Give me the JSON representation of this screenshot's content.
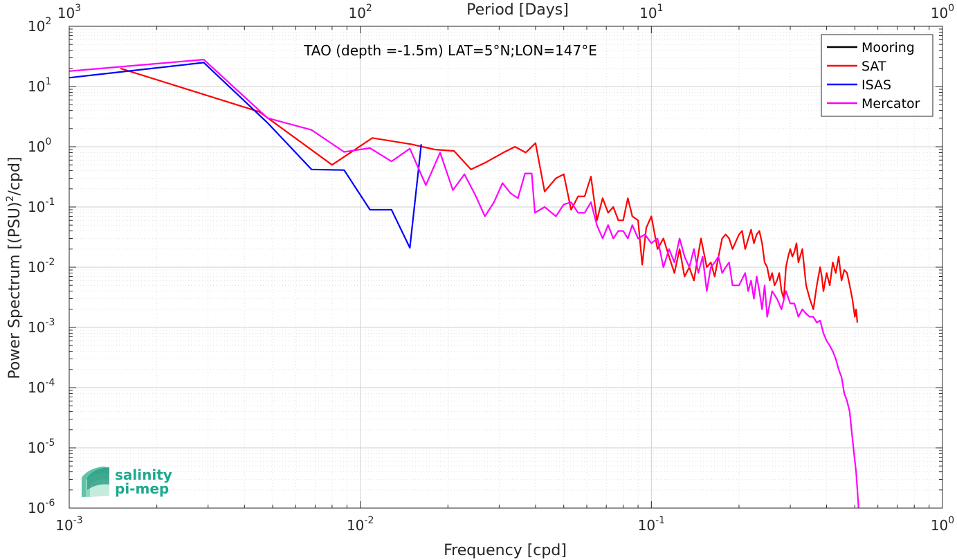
{
  "chart_data": {
    "type": "line",
    "title": "TAO (depth =-1.5m) LAT=5°N;LON=147°E",
    "xlabel": "Frequency [cpd]",
    "ylabel_main": "Power Spectrum [(PSU)",
    "ylabel_sup": "2",
    "ylabel_tail": "/cpd]",
    "top_xlabel": "Period [Days]",
    "x_scale": "log",
    "y_scale": "log",
    "xlim": [
      0.001,
      1
    ],
    "ylim": [
      1e-06,
      100
    ],
    "grid": true,
    "legend_position": "top-right",
    "x_ticks": [
      {
        "value": 0.001,
        "base": "10",
        "exp": "-3"
      },
      {
        "value": 0.01,
        "base": "10",
        "exp": "-2"
      },
      {
        "value": 0.1,
        "base": "10",
        "exp": "-1"
      },
      {
        "value": 1,
        "base": "10",
        "exp": "0"
      }
    ],
    "top_ticks": [
      {
        "value": 0.001,
        "base": "10",
        "exp": "3"
      },
      {
        "value": 0.01,
        "base": "10",
        "exp": "2"
      },
      {
        "value": 0.1,
        "base": "10",
        "exp": "1"
      },
      {
        "value": 1,
        "base": "10",
        "exp": "0"
      }
    ],
    "y_ticks": [
      {
        "value": 100,
        "base": "10",
        "exp": "2"
      },
      {
        "value": 10,
        "base": "10",
        "exp": "1"
      },
      {
        "value": 1,
        "base": "10",
        "exp": "0"
      },
      {
        "value": 0.1,
        "base": "10",
        "exp": "-1"
      },
      {
        "value": 0.01,
        "base": "10",
        "exp": "-2"
      },
      {
        "value": 0.001,
        "base": "10",
        "exp": "-3"
      },
      {
        "value": 0.0001,
        "base": "10",
        "exp": "-4"
      },
      {
        "value": 1e-05,
        "base": "10",
        "exp": "-5"
      },
      {
        "value": 1e-06,
        "base": "10",
        "exp": "-6"
      }
    ],
    "series": [
      {
        "name": "Mooring",
        "color": "#000000",
        "points": []
      },
      {
        "name": "SAT",
        "color": "#ff0000",
        "points": [
          [
            0.0015,
            20
          ],
          [
            0.0045,
            3.8
          ],
          [
            0.008,
            0.5
          ],
          [
            0.011,
            1.4
          ],
          [
            0.015,
            1.1
          ],
          [
            0.018,
            0.9
          ],
          [
            0.021,
            0.85
          ],
          [
            0.024,
            0.42
          ],
          [
            0.027,
            0.55
          ],
          [
            0.031,
            0.8
          ],
          [
            0.034,
            1.0
          ],
          [
            0.037,
            0.8
          ],
          [
            0.04,
            1.15
          ],
          [
            0.043,
            0.18
          ],
          [
            0.047,
            0.3
          ],
          [
            0.05,
            0.35
          ],
          [
            0.053,
            0.09
          ],
          [
            0.056,
            0.15
          ],
          [
            0.059,
            0.15
          ],
          [
            0.062,
            0.32
          ],
          [
            0.065,
            0.06
          ],
          [
            0.068,
            0.14
          ],
          [
            0.071,
            0.08
          ],
          [
            0.074,
            0.1
          ],
          [
            0.077,
            0.06
          ],
          [
            0.08,
            0.06
          ],
          [
            0.083,
            0.14
          ],
          [
            0.086,
            0.07
          ],
          [
            0.09,
            0.06
          ],
          [
            0.093,
            0.011
          ],
          [
            0.096,
            0.045
          ],
          [
            0.1,
            0.07
          ],
          [
            0.105,
            0.02
          ],
          [
            0.11,
            0.03
          ],
          [
            0.115,
            0.015
          ],
          [
            0.12,
            0.008
          ],
          [
            0.125,
            0.02
          ],
          [
            0.13,
            0.007
          ],
          [
            0.135,
            0.01
          ],
          [
            0.14,
            0.006
          ],
          [
            0.148,
            0.03
          ],
          [
            0.155,
            0.01
          ],
          [
            0.16,
            0.012
          ],
          [
            0.165,
            0.007
          ],
          [
            0.17,
            0.015
          ],
          [
            0.175,
            0.03
          ],
          [
            0.18,
            0.035
          ],
          [
            0.185,
            0.03
          ],
          [
            0.19,
            0.02
          ],
          [
            0.2,
            0.035
          ],
          [
            0.205,
            0.04
          ],
          [
            0.21,
            0.02
          ],
          [
            0.22,
            0.042
          ],
          [
            0.225,
            0.025
          ],
          [
            0.23,
            0.035
          ],
          [
            0.235,
            0.04
          ],
          [
            0.24,
            0.025
          ],
          [
            0.245,
            0.012
          ],
          [
            0.25,
            0.01
          ],
          [
            0.255,
            0.006
          ],
          [
            0.26,
            0.008
          ],
          [
            0.265,
            0.005
          ],
          [
            0.27,
            0.006
          ],
          [
            0.275,
            0.008
          ],
          [
            0.28,
            0.004
          ],
          [
            0.285,
            0.003
          ],
          [
            0.29,
            0.01
          ],
          [
            0.295,
            0.015
          ],
          [
            0.3,
            0.02
          ],
          [
            0.305,
            0.015
          ],
          [
            0.31,
            0.018
          ],
          [
            0.315,
            0.025
          ],
          [
            0.32,
            0.012
          ],
          [
            0.33,
            0.02
          ],
          [
            0.335,
            0.01
          ],
          [
            0.34,
            0.005
          ],
          [
            0.35,
            0.003
          ],
          [
            0.36,
            0.002
          ],
          [
            0.37,
            0.005
          ],
          [
            0.38,
            0.01
          ],
          [
            0.385,
            0.007
          ],
          [
            0.39,
            0.004
          ],
          [
            0.4,
            0.008
          ],
          [
            0.41,
            0.005
          ],
          [
            0.42,
            0.012
          ],
          [
            0.43,
            0.008
          ],
          [
            0.44,
            0.015
          ],
          [
            0.45,
            0.006
          ],
          [
            0.46,
            0.009
          ],
          [
            0.47,
            0.008
          ],
          [
            0.48,
            0.005
          ],
          [
            0.49,
            0.003
          ],
          [
            0.5,
            0.0015
          ],
          [
            0.505,
            0.002
          ],
          [
            0.51,
            0.0012
          ]
        ]
      },
      {
        "name": "ISAS",
        "color": "#0000ff",
        "points": [
          [
            0.001,
            14
          ],
          [
            0.0029,
            25
          ],
          [
            0.0048,
            2.5
          ],
          [
            0.0068,
            0.42
          ],
          [
            0.0088,
            0.41
          ],
          [
            0.0108,
            0.09
          ],
          [
            0.0128,
            0.09
          ],
          [
            0.0148,
            0.021
          ],
          [
            0.0162,
            1.1
          ]
        ]
      },
      {
        "name": "Mercator",
        "color": "#ff00ff",
        "points": [
          [
            0.001,
            18
          ],
          [
            0.0029,
            28
          ],
          [
            0.0048,
            3.0
          ],
          [
            0.0068,
            1.9
          ],
          [
            0.0088,
            0.82
          ],
          [
            0.0108,
            0.95
          ],
          [
            0.0128,
            0.57
          ],
          [
            0.0148,
            0.93
          ],
          [
            0.0168,
            0.23
          ],
          [
            0.0188,
            0.8
          ],
          [
            0.0208,
            0.19
          ],
          [
            0.0228,
            0.35
          ],
          [
            0.0248,
            0.16
          ],
          [
            0.0268,
            0.07
          ],
          [
            0.0288,
            0.12
          ],
          [
            0.0308,
            0.25
          ],
          [
            0.0328,
            0.17
          ],
          [
            0.0348,
            0.14
          ],
          [
            0.0368,
            0.36
          ],
          [
            0.0388,
            0.36
          ],
          [
            0.0398,
            0.08
          ],
          [
            0.043,
            0.1
          ],
          [
            0.047,
            0.07
          ],
          [
            0.05,
            0.11
          ],
          [
            0.053,
            0.12
          ],
          [
            0.056,
            0.08
          ],
          [
            0.059,
            0.08
          ],
          [
            0.062,
            0.12
          ],
          [
            0.065,
            0.05
          ],
          [
            0.068,
            0.03
          ],
          [
            0.071,
            0.05
          ],
          [
            0.074,
            0.03
          ],
          [
            0.077,
            0.04
          ],
          [
            0.08,
            0.04
          ],
          [
            0.083,
            0.03
          ],
          [
            0.086,
            0.05
          ],
          [
            0.09,
            0.03
          ],
          [
            0.095,
            0.035
          ],
          [
            0.1,
            0.025
          ],
          [
            0.105,
            0.03
          ],
          [
            0.11,
            0.01
          ],
          [
            0.115,
            0.02
          ],
          [
            0.12,
            0.012
          ],
          [
            0.125,
            0.03
          ],
          [
            0.13,
            0.015
          ],
          [
            0.135,
            0.01
          ],
          [
            0.14,
            0.02
          ],
          [
            0.145,
            0.008
          ],
          [
            0.15,
            0.015
          ],
          [
            0.155,
            0.004
          ],
          [
            0.16,
            0.01
          ],
          [
            0.165,
            0.012
          ],
          [
            0.17,
            0.015
          ],
          [
            0.175,
            0.008
          ],
          [
            0.18,
            0.01
          ],
          [
            0.185,
            0.012
          ],
          [
            0.19,
            0.005
          ],
          [
            0.2,
            0.005
          ],
          [
            0.21,
            0.008
          ],
          [
            0.215,
            0.004
          ],
          [
            0.22,
            0.006
          ],
          [
            0.225,
            0.003
          ],
          [
            0.23,
            0.007
          ],
          [
            0.235,
            0.004
          ],
          [
            0.24,
            0.002
          ],
          [
            0.245,
            0.005
          ],
          [
            0.25,
            0.0015
          ],
          [
            0.26,
            0.004
          ],
          [
            0.27,
            0.003
          ],
          [
            0.28,
            0.002
          ],
          [
            0.29,
            0.004
          ],
          [
            0.3,
            0.0025
          ],
          [
            0.31,
            0.0025
          ],
          [
            0.32,
            0.0015
          ],
          [
            0.33,
            0.002
          ],
          [
            0.34,
            0.0017
          ],
          [
            0.35,
            0.0015
          ],
          [
            0.36,
            0.0015
          ],
          [
            0.37,
            0.0012
          ],
          [
            0.38,
            0.0013
          ],
          [
            0.39,
            0.0008
          ],
          [
            0.4,
            0.0006
          ],
          [
            0.41,
            0.0005
          ],
          [
            0.42,
            0.0004
          ],
          [
            0.43,
            0.0003
          ],
          [
            0.44,
            0.0002
          ],
          [
            0.45,
            0.00015
          ],
          [
            0.46,
            8e-05
          ],
          [
            0.47,
            6e-05
          ],
          [
            0.48,
            4e-05
          ],
          [
            0.49,
            1.5e-05
          ],
          [
            0.5,
            6e-06
          ],
          [
            0.505,
            4e-06
          ],
          [
            0.51,
            2e-06
          ],
          [
            0.515,
            1e-06
          ]
        ]
      }
    ]
  },
  "logo": {
    "line1": "salinity",
    "line2": "pi-mep"
  }
}
